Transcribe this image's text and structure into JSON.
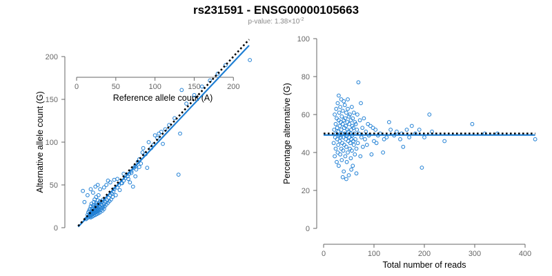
{
  "figure": {
    "title": "rs231591 - ENSG00000105663",
    "subtitle_prefix": "p-value: 1.38×10",
    "subtitle_exp": "-2",
    "point_color": "#1f7fd4",
    "reference_color": "#000000"
  },
  "chart_data": [
    {
      "type": "scatter",
      "xlabel": "Reference allele count (A)",
      "ylabel": "Alternative allele count (G)",
      "xlim": [
        0,
        220
      ],
      "ylim": [
        0,
        200
      ],
      "xticks": [
        0,
        50,
        100,
        150,
        200
      ],
      "yticks": [
        0,
        50,
        100,
        150,
        200
      ],
      "fit_line": {
        "x": [
          2,
          220
        ],
        "y": [
          1,
          213
        ]
      },
      "reference_line": {
        "x": [
          2,
          220
        ],
        "y": [
          2,
          220
        ]
      },
      "points": [
        [
          12,
          10
        ],
        [
          13,
          11
        ],
        [
          14,
          15
        ],
        [
          15,
          12
        ],
        [
          15,
          18
        ],
        [
          16,
          14
        ],
        [
          16,
          20
        ],
        [
          17,
          13
        ],
        [
          17,
          16
        ],
        [
          17,
          22
        ],
        [
          18,
          12
        ],
        [
          18,
          17
        ],
        [
          18,
          25
        ],
        [
          19,
          15
        ],
        [
          19,
          19
        ],
        [
          19,
          28
        ],
        [
          20,
          13
        ],
        [
          20,
          18
        ],
        [
          20,
          22
        ],
        [
          21,
          16
        ],
        [
          21,
          20
        ],
        [
          21,
          26
        ],
        [
          22,
          14
        ],
        [
          22,
          19
        ],
        [
          22,
          24
        ],
        [
          22,
          30
        ],
        [
          23,
          17
        ],
        [
          23,
          21
        ],
        [
          23,
          33
        ],
        [
          24,
          15
        ],
        [
          24,
          20
        ],
        [
          24,
          25
        ],
        [
          25,
          18
        ],
        [
          25,
          23
        ],
        [
          25,
          29
        ],
        [
          25,
          36
        ],
        [
          26,
          16
        ],
        [
          26,
          21
        ],
        [
          26,
          27
        ],
        [
          27,
          19
        ],
        [
          27,
          24
        ],
        [
          27,
          32
        ],
        [
          28,
          17
        ],
        [
          28,
          22
        ],
        [
          28,
          28
        ],
        [
          28,
          38
        ],
        [
          29,
          20
        ],
        [
          29,
          25
        ],
        [
          30,
          18
        ],
        [
          30,
          24
        ],
        [
          30,
          31
        ],
        [
          31,
          21
        ],
        [
          31,
          27
        ],
        [
          32,
          23
        ],
        [
          32,
          30
        ],
        [
          33,
          20
        ],
        [
          33,
          26
        ],
        [
          34,
          24
        ],
        [
          34,
          33
        ],
        [
          35,
          22
        ],
        [
          35,
          28
        ],
        [
          36,
          25
        ],
        [
          37,
          30
        ],
        [
          38,
          27
        ],
        [
          39,
          32
        ],
        [
          40,
          29
        ],
        [
          41,
          35
        ],
        [
          42,
          31
        ],
        [
          43,
          38
        ],
        [
          44,
          33
        ],
        [
          45,
          40
        ],
        [
          46,
          36
        ],
        [
          47,
          42
        ],
        [
          48,
          45
        ],
        [
          50,
          38
        ],
        [
          52,
          47
        ],
        [
          54,
          50
        ],
        [
          55,
          44
        ],
        [
          57,
          52
        ],
        [
          60,
          55
        ],
        [
          62,
          58
        ],
        [
          65,
          60
        ],
        [
          67,
          63
        ],
        [
          68,
          53
        ],
        [
          70,
          66
        ],
        [
          72,
          48
        ],
        [
          73,
          70
        ],
        [
          75,
          72
        ],
        [
          76,
          68
        ],
        [
          78,
          77
        ],
        [
          80,
          80
        ],
        [
          82,
          75
        ],
        [
          84,
          88
        ],
        [
          85,
          93
        ],
        [
          88,
          86
        ],
        [
          90,
          70
        ],
        [
          92,
          100
        ],
        [
          95,
          93
        ],
        [
          98,
          97
        ],
        [
          100,
          108
        ],
        [
          103,
          105
        ],
        [
          105,
          110
        ],
        [
          108,
          112
        ],
        [
          110,
          98
        ],
        [
          113,
          115
        ],
        [
          118,
          120
        ],
        [
          125,
          128
        ],
        [
          130,
          62
        ],
        [
          132,
          110
        ],
        [
          134,
          161
        ],
        [
          140,
          145
        ],
        [
          150,
          155
        ],
        [
          160,
          165
        ],
        [
          170,
          172
        ],
        [
          180,
          180
        ],
        [
          190,
          190
        ],
        [
          221,
          196
        ],
        [
          8,
          43
        ],
        [
          10,
          30
        ],
        [
          14,
          38
        ],
        [
          18,
          45
        ],
        [
          21,
          41
        ],
        [
          24,
          48
        ],
        [
          27,
          50
        ],
        [
          30,
          45
        ],
        [
          35,
          47
        ],
        [
          38,
          50
        ],
        [
          40,
          55
        ],
        [
          43,
          53
        ],
        [
          48,
          56
        ],
        [
          52,
          57
        ],
        [
          58,
          52
        ],
        [
          60,
          63
        ],
        [
          66,
          57
        ],
        [
          70,
          64
        ],
        [
          75,
          60
        ],
        [
          80,
          71
        ]
      ]
    },
    {
      "type": "scatter",
      "xlabel": "Total number of reads",
      "ylabel": "Percentage alternative (G)",
      "xlim": [
        0,
        400
      ],
      "ylim": [
        0,
        100
      ],
      "xticks": [
        0,
        100,
        200,
        300,
        400
      ],
      "yticks": [
        0,
        20,
        40,
        60,
        80,
        100
      ],
      "fit_line": {
        "x": [
          0,
          420
        ],
        "y": [
          49.2,
          49.2
        ]
      },
      "reference_line": {
        "x": [
          0,
          420
        ],
        "y": [
          50,
          50
        ]
      },
      "points": [
        [
          20,
          45
        ],
        [
          21,
          52
        ],
        [
          22,
          38
        ],
        [
          22,
          60
        ],
        [
          23,
          48
        ],
        [
          24,
          55
        ],
        [
          24,
          42
        ],
        [
          25,
          63
        ],
        [
          25,
          50
        ],
        [
          26,
          35
        ],
        [
          26,
          58
        ],
        [
          27,
          47
        ],
        [
          27,
          53
        ],
        [
          28,
          40
        ],
        [
          28,
          66
        ],
        [
          29,
          51
        ],
        [
          29,
          44
        ],
        [
          30,
          57
        ],
        [
          30,
          33
        ],
        [
          31,
          49
        ],
        [
          31,
          61
        ],
        [
          32,
          46
        ],
        [
          32,
          54
        ],
        [
          33,
          39
        ],
        [
          33,
          64
        ],
        [
          34,
          48
        ],
        [
          34,
          56
        ],
        [
          35,
          42
        ],
        [
          35,
          52
        ],
        [
          36,
          59
        ],
        [
          36,
          36
        ],
        [
          37,
          50
        ],
        [
          37,
          45
        ],
        [
          38,
          62
        ],
        [
          38,
          55
        ],
        [
          39,
          41
        ],
        [
          39,
          48
        ],
        [
          40,
          57
        ],
        [
          40,
          30
        ],
        [
          41,
          53
        ],
        [
          41,
          44
        ],
        [
          42,
          65
        ],
        [
          42,
          50
        ],
        [
          43,
          38
        ],
        [
          43,
          58
        ],
        [
          44,
          47
        ],
        [
          44,
          54
        ],
        [
          45,
          43
        ],
        [
          45,
          61
        ],
        [
          46,
          49
        ],
        [
          46,
          35
        ],
        [
          47,
          56
        ],
        [
          47,
          52
        ],
        [
          48,
          40
        ],
        [
          48,
          63
        ],
        [
          49,
          46
        ],
        [
          49,
          51
        ],
        [
          50,
          59
        ],
        [
          50,
          28
        ],
        [
          51,
          48
        ],
        [
          51,
          55
        ],
        [
          52,
          42
        ],
        [
          52,
          60
        ],
        [
          53,
          50
        ],
        [
          53,
          45
        ],
        [
          54,
          57
        ],
        [
          54,
          37
        ],
        [
          55,
          52
        ],
        [
          55,
          47
        ],
        [
          56,
          64
        ],
        [
          56,
          41
        ],
        [
          57,
          54
        ],
        [
          57,
          49
        ],
        [
          58,
          58
        ],
        [
          58,
          33
        ],
        [
          59,
          46
        ],
        [
          59,
          53
        ],
        [
          60,
          61
        ],
        [
          60,
          44
        ],
        [
          61,
          50
        ],
        [
          62,
          39
        ],
        [
          62,
          56
        ],
        [
          63,
          47
        ],
        [
          64,
          55
        ],
        [
          65,
          42
        ],
        [
          66,
          52
        ],
        [
          67,
          60
        ],
        [
          68,
          45
        ],
        [
          69,
          77
        ],
        [
          70,
          50
        ],
        [
          72,
          57
        ],
        [
          73,
          38
        ],
        [
          74,
          66
        ],
        [
          75,
          48
        ],
        [
          77,
          53
        ],
        [
          78,
          43
        ],
        [
          80,
          58
        ],
        [
          82,
          47
        ],
        [
          84,
          51
        ],
        [
          86,
          44
        ],
        [
          88,
          55
        ],
        [
          90,
          49
        ],
        [
          93,
          54
        ],
        [
          95,
          39
        ],
        [
          98,
          53
        ],
        [
          100,
          46
        ],
        [
          103,
          52
        ],
        [
          105,
          45
        ],
        [
          108,
          49
        ],
        [
          112,
          50
        ],
        [
          118,
          40
        ],
        [
          120,
          47
        ],
        [
          125,
          48
        ],
        [
          130,
          56
        ],
        [
          133,
          52
        ],
        [
          140,
          49
        ],
        [
          145,
          51
        ],
        [
          152,
          47
        ],
        [
          155,
          50
        ],
        [
          158,
          43
        ],
        [
          165,
          52
        ],
        [
          170,
          48
        ],
        [
          175,
          54
        ],
        [
          182,
          50
        ],
        [
          190,
          52
        ],
        [
          195,
          32
        ],
        [
          200,
          48
        ],
        [
          210,
          60
        ],
        [
          215,
          51
        ],
        [
          240,
          46
        ],
        [
          295,
          55
        ],
        [
          320,
          50
        ],
        [
          345,
          50
        ],
        [
          420,
          47
        ],
        [
          30,
          70
        ],
        [
          35,
          68
        ],
        [
          40,
          67
        ],
        [
          45,
          26
        ],
        [
          55,
          31
        ],
        [
          65,
          29
        ],
        [
          48,
          68
        ],
        [
          38,
          27
        ]
      ]
    }
  ]
}
